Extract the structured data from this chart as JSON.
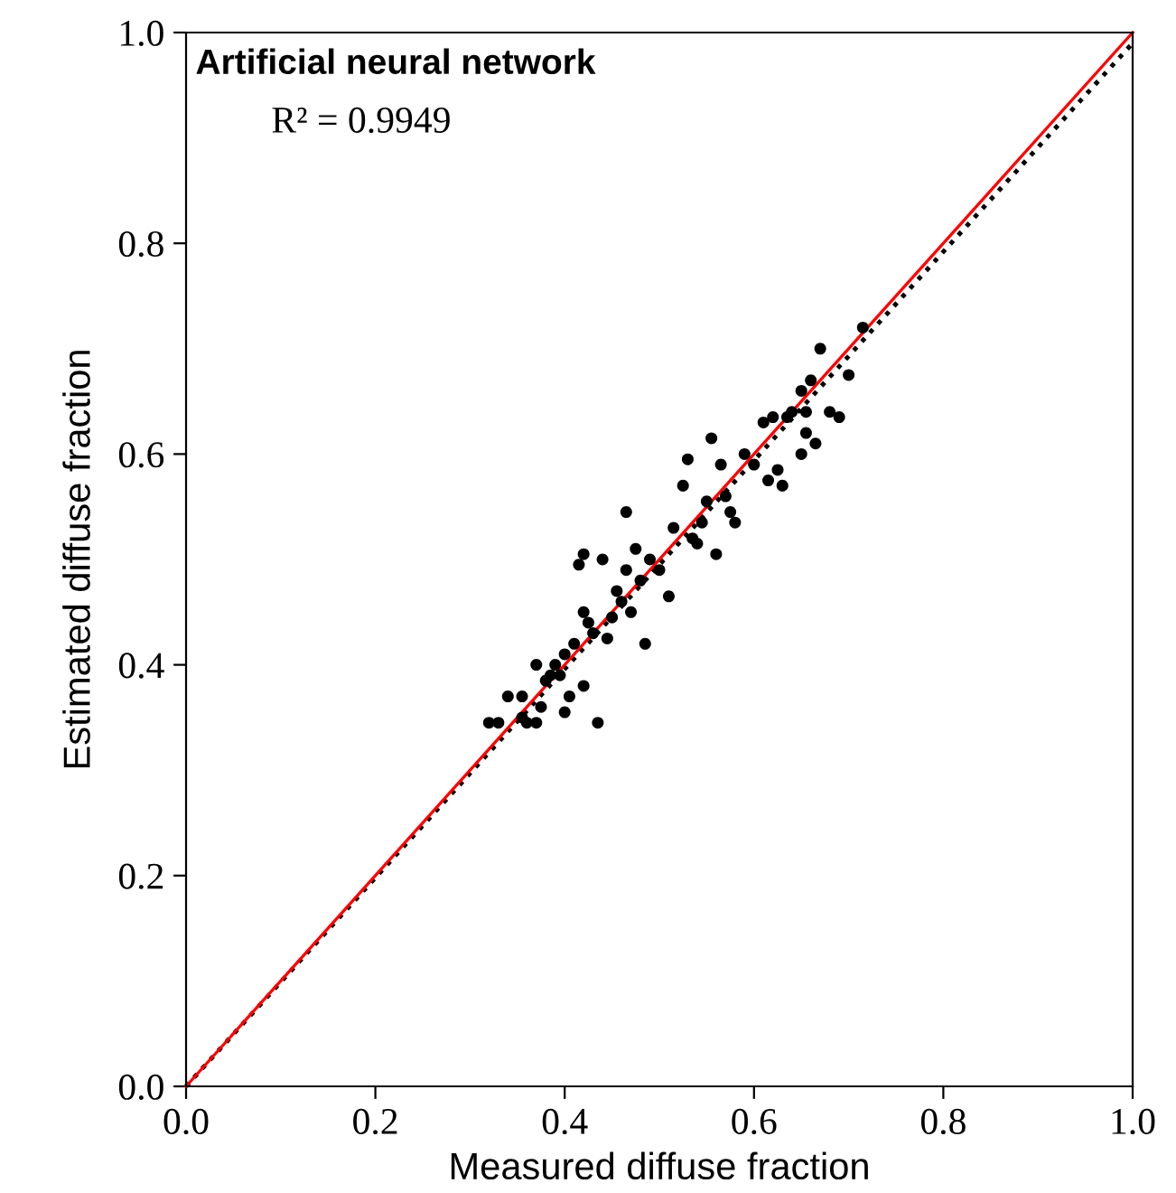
{
  "chart_data": {
    "type": "scatter",
    "title": "Artificial neural network",
    "annotations": [
      "R² = 0.9949"
    ],
    "xlabel": "Measured diffuse fraction",
    "ylabel": "Estimated diffuse fraction",
    "xlim": [
      0,
      1
    ],
    "ylim": [
      0,
      1
    ],
    "xticks": [
      {
        "value": 0,
        "label": "0.0"
      },
      {
        "value": 0.2,
        "label": "0.2"
      },
      {
        "value": 0.4,
        "label": "0.4"
      },
      {
        "value": 0.6,
        "label": "0.6"
      },
      {
        "value": 0.8,
        "label": "0.8"
      },
      {
        "value": 1,
        "label": "1.0"
      }
    ],
    "yticks": [
      {
        "value": 0,
        "label": "0.0"
      },
      {
        "value": 0.2,
        "label": "0.2"
      },
      {
        "value": 0.4,
        "label": "0.4"
      },
      {
        "value": 0.6,
        "label": "0.6"
      },
      {
        "value": 0.8,
        "label": "0.8"
      },
      {
        "value": 1,
        "label": "1.0"
      }
    ],
    "grid": false,
    "legend": false,
    "series": [
      {
        "color": "#000000",
        "marker": "circle",
        "x": [
          0.32,
          0.33,
          0.34,
          0.355,
          0.36,
          0.355,
          0.37,
          0.37,
          0.375,
          0.38,
          0.385,
          0.39,
          0.395,
          0.4,
          0.4,
          0.405,
          0.41,
          0.415,
          0.42,
          0.42,
          0.42,
          0.425,
          0.43,
          0.435,
          0.44,
          0.445,
          0.45,
          0.455,
          0.46,
          0.465,
          0.465,
          0.47,
          0.475,
          0.48,
          0.485,
          0.49,
          0.5,
          0.51,
          0.515,
          0.525,
          0.53,
          0.535,
          0.54,
          0.545,
          0.55,
          0.555,
          0.56,
          0.565,
          0.57,
          0.575,
          0.58,
          0.59,
          0.6,
          0.61,
          0.615,
          0.62,
          0.625,
          0.63,
          0.635,
          0.64,
          0.65,
          0.655,
          0.655,
          0.66,
          0.665,
          0.67,
          0.68,
          0.69,
          0.7,
          0.715,
          0.65
        ],
        "values": [
          0.345,
          0.345,
          0.37,
          0.35,
          0.345,
          0.37,
          0.345,
          0.4,
          0.36,
          0.385,
          0.39,
          0.4,
          0.39,
          0.41,
          0.355,
          0.37,
          0.42,
          0.495,
          0.505,
          0.38,
          0.45,
          0.44,
          0.43,
          0.345,
          0.5,
          0.425,
          0.445,
          0.47,
          0.46,
          0.545,
          0.49,
          0.45,
          0.51,
          0.48,
          0.42,
          0.5,
          0.49,
          0.465,
          0.53,
          0.57,
          0.595,
          0.52,
          0.515,
          0.535,
          0.555,
          0.615,
          0.505,
          0.59,
          0.56,
          0.545,
          0.535,
          0.6,
          0.59,
          0.63,
          0.575,
          0.635,
          0.585,
          0.57,
          0.635,
          0.64,
          0.6,
          0.64,
          0.62,
          0.67,
          0.61,
          0.7,
          0.64,
          0.635,
          0.675,
          0.72,
          0.66
        ]
      },
      {
        "type": "line",
        "color": "#000000",
        "line_style": "dotted",
        "marker": "none",
        "x": [
          0,
          1
        ],
        "values": [
          0,
          0.99
        ]
      },
      {
        "type": "line",
        "color": "#ff0000",
        "line_style": "solid",
        "marker": "none",
        "x": [
          0,
          1
        ],
        "values": [
          0,
          1.0
        ]
      }
    ]
  }
}
